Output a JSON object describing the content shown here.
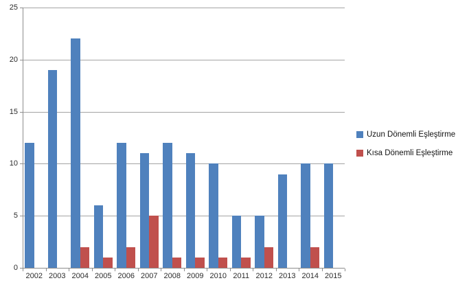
{
  "chart_data": {
    "type": "bar",
    "title": "",
    "xlabel": "",
    "ylabel": "",
    "categories": [
      "2002",
      "2003",
      "2004",
      "2005",
      "2006",
      "2007",
      "2008",
      "2009",
      "2010",
      "2011",
      "2012",
      "2013",
      "2014",
      "2015"
    ],
    "series": [
      {
        "name": "Uzun Dönemli Eşleştirme",
        "color": "#4f81bd",
        "values": [
          12,
          19,
          22,
          6,
          12,
          11,
          12,
          11,
          10,
          5,
          5,
          9,
          10,
          10
        ]
      },
      {
        "name": "Kısa Dönemli Eşleştirme",
        "color": "#c0504d",
        "values": [
          0,
          0,
          2,
          1,
          2,
          5,
          1,
          1,
          1,
          1,
          2,
          0,
          2,
          0
        ]
      }
    ],
    "ylim": [
      0,
      25
    ],
    "ytick_step": 5,
    "yticks": [
      0,
      5,
      10,
      15,
      20,
      25
    ],
    "grid": true,
    "legend_position": "right",
    "colors": {
      "background": "#ffffff",
      "gridline": "#a3a3a3",
      "axis": "#8c8c8c",
      "text": "#2b2b2b"
    }
  }
}
